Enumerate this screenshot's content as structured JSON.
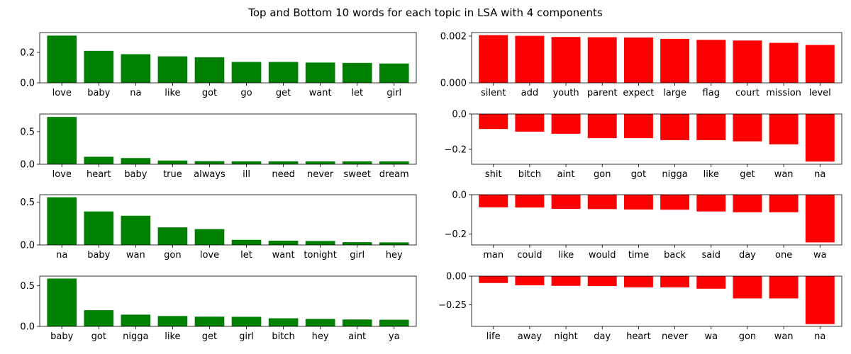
{
  "figure": {
    "title": "Top and Bottom 10 words for each topic in LSA with 4 components",
    "colors": {
      "positive": "#008000",
      "negative": "#ff0000"
    }
  },
  "chart_data": [
    {
      "type": "bar",
      "categories": [
        "love",
        "baby",
        "na",
        "like",
        "got",
        "go",
        "get",
        "want",
        "let",
        "girl"
      ],
      "values": [
        0.31,
        0.21,
        0.188,
        0.174,
        0.168,
        0.137,
        0.137,
        0.133,
        0.131,
        0.127
      ],
      "ylim": [
        0,
        0.33
      ],
      "yticks": [
        0.0,
        0.2
      ],
      "ytick_labels": [
        "0.0",
        "0.2"
      ],
      "color": "#008000"
    },
    {
      "type": "bar",
      "categories": [
        "silent",
        "add",
        "youth",
        "parent",
        "expect",
        "large",
        "flag",
        "court",
        "mission",
        "level"
      ],
      "values": [
        0.00204,
        0.00201,
        0.00196,
        0.00195,
        0.00194,
        0.00188,
        0.00184,
        0.00181,
        0.00171,
        0.00162
      ],
      "ylim": [
        0,
        0.00215
      ],
      "yticks": [
        0.0,
        0.002
      ],
      "ytick_labels": [
        "0.000",
        "0.002"
      ],
      "color": "#ff0000"
    },
    {
      "type": "bar",
      "categories": [
        "love",
        "heart",
        "baby",
        "true",
        "always",
        "ill",
        "need",
        "never",
        "sweet",
        "dream"
      ],
      "values": [
        0.725,
        0.115,
        0.095,
        0.057,
        0.048,
        0.045,
        0.045,
        0.044,
        0.044,
        0.044
      ],
      "ylim": [
        0,
        0.77
      ],
      "yticks": [
        0.0,
        0.5
      ],
      "ytick_labels": [
        "0.0",
        "0.5"
      ],
      "color": "#008000"
    },
    {
      "type": "bar",
      "categories": [
        "shit",
        "bitch",
        "aint",
        "gon",
        "got",
        "nigga",
        "like",
        "get",
        "wan",
        "na"
      ],
      "values": [
        -0.085,
        -0.1,
        -0.112,
        -0.137,
        -0.137,
        -0.148,
        -0.148,
        -0.155,
        -0.172,
        -0.27
      ],
      "ylim": [
        -0.285,
        0
      ],
      "yticks": [
        0.0,
        -0.2
      ],
      "ytick_labels": [
        "0.0",
        "−0.2"
      ],
      "color": "#ff0000"
    },
    {
      "type": "bar",
      "categories": [
        "na",
        "baby",
        "wan",
        "gon",
        "love",
        "let",
        "want",
        "tonight",
        "girl",
        "hey"
      ],
      "values": [
        0.555,
        0.39,
        0.34,
        0.205,
        0.185,
        0.06,
        0.05,
        0.047,
        0.032,
        0.03
      ],
      "ylim": [
        0,
        0.585
      ],
      "yticks": [
        0.0,
        0.5
      ],
      "ytick_labels": [
        "0.0",
        "0.5"
      ],
      "color": "#008000"
    },
    {
      "type": "bar",
      "categories": [
        "man",
        "could",
        "like",
        "would",
        "time",
        "back",
        "said",
        "day",
        "one",
        "wa"
      ],
      "values": [
        -0.064,
        -0.065,
        -0.072,
        -0.073,
        -0.075,
        -0.076,
        -0.085,
        -0.089,
        -0.089,
        -0.242
      ],
      "ylim": [
        -0.255,
        0
      ],
      "yticks": [
        0.0,
        -0.2
      ],
      "ytick_labels": [
        "0.0",
        "−0.2"
      ],
      "color": "#ff0000"
    },
    {
      "type": "bar",
      "categories": [
        "baby",
        "got",
        "nigga",
        "like",
        "get",
        "girl",
        "bitch",
        "hey",
        "aint",
        "ya"
      ],
      "values": [
        0.59,
        0.2,
        0.145,
        0.128,
        0.12,
        0.118,
        0.1,
        0.092,
        0.085,
        0.082
      ],
      "ylim": [
        0,
        0.62
      ],
      "yticks": [
        0.0,
        0.5
      ],
      "ytick_labels": [
        "0.0",
        "0.5"
      ],
      "color": "#008000"
    },
    {
      "type": "bar",
      "categories": [
        "life",
        "away",
        "night",
        "day",
        "heart",
        "never",
        "wa",
        "gon",
        "wan",
        "na"
      ],
      "values": [
        -0.06,
        -0.08,
        -0.085,
        -0.087,
        -0.098,
        -0.098,
        -0.11,
        -0.195,
        -0.195,
        -0.42
      ],
      "ylim": [
        -0.44,
        0
      ],
      "yticks": [
        0.0,
        -0.25
      ],
      "ytick_labels": [
        "0.00",
        "−0.25"
      ],
      "color": "#ff0000"
    }
  ]
}
